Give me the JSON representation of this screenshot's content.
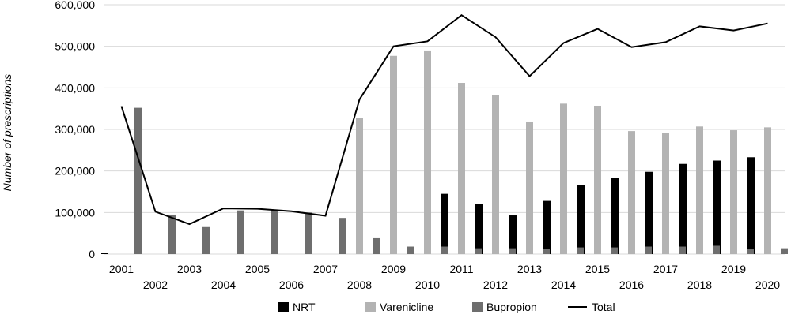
{
  "chart_data": {
    "type": "bar",
    "title": "",
    "xlabel": "",
    "ylabel": "Number of prescriptions",
    "ylim": [
      0,
      600000
    ],
    "yticks": [
      "0",
      "100,000",
      "200,000",
      "300,000",
      "400,000",
      "500,000",
      "600,000"
    ],
    "grid": true,
    "legend_position": "bottom",
    "categories": [
      "2001",
      "2002",
      "2003",
      "2004",
      "2005",
      "2006",
      "2007",
      "2008",
      "2009",
      "2010",
      "2011",
      "2012",
      "2013",
      "2014",
      "2015",
      "2016",
      "2017",
      "2018",
      "2019",
      "2020"
    ],
    "series": [
      {
        "name": "NRT",
        "type": "bar",
        "color": "#000000",
        "values": [
          3000,
          4000,
          3000,
          3000,
          3000,
          2000,
          2000,
          2000,
          2000,
          2000,
          145000,
          121000,
          93000,
          128000,
          167000,
          183000,
          198000,
          217000,
          225000,
          233000
        ]
      },
      {
        "name": "Varenicline",
        "type": "bar",
        "color": "#b3b3b3",
        "values": [
          0,
          0,
          0,
          0,
          0,
          0,
          0,
          328000,
          477000,
          490000,
          412000,
          382000,
          319000,
          362000,
          357000,
          296000,
          292000,
          307000,
          298000,
          305000
        ]
      },
      {
        "name": "Bupropion",
        "type": "bar",
        "color": "#6e6e6e",
        "values": [
          352000,
          95000,
          65000,
          105000,
          106000,
          100000,
          87000,
          40000,
          18000,
          18000,
          14000,
          14000,
          12000,
          16000,
          16000,
          18000,
          18000,
          20000,
          12000,
          14000
        ]
      },
      {
        "name": "Total",
        "type": "line",
        "color": "#000000",
        "values": [
          356000,
          102000,
          72000,
          110000,
          109000,
          103000,
          92000,
          372000,
          500000,
          512000,
          575000,
          522000,
          428000,
          508000,
          542000,
          498000,
          510000,
          548000,
          538000,
          555000
        ]
      }
    ]
  }
}
